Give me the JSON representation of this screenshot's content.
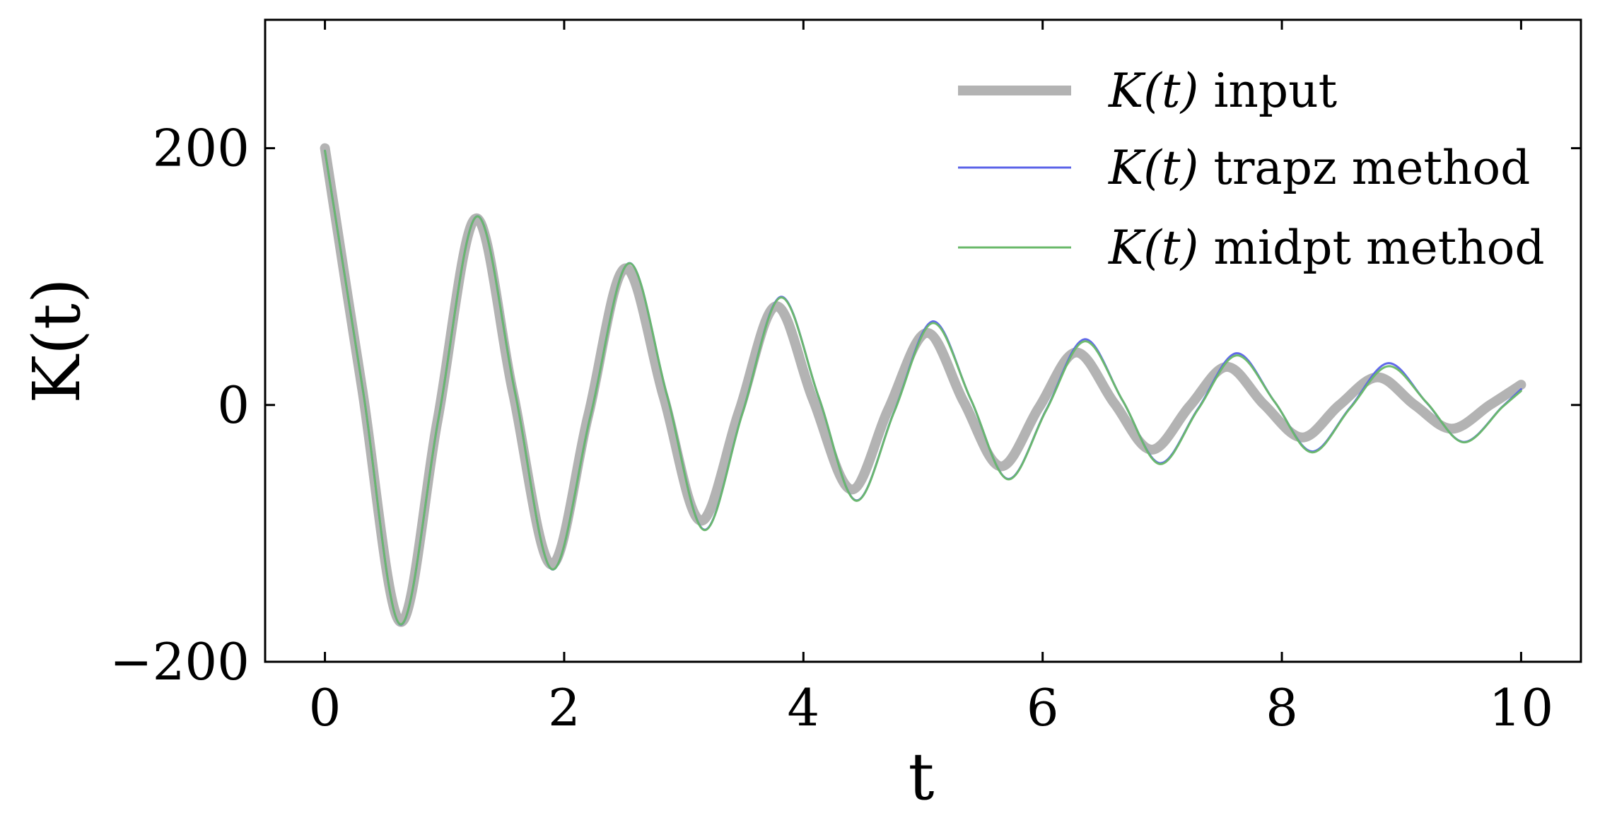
{
  "chart_data": {
    "type": "line",
    "title": "",
    "xlabel": "t",
    "ylabel": "K(t)",
    "xlim": [
      -0.5,
      10.5
    ],
    "ylim": [
      -200,
      300
    ],
    "xticks": [
      0,
      2,
      4,
      6,
      8,
      10
    ],
    "xtick_labels": [
      "0",
      "2",
      "4",
      "6",
      "8",
      "10"
    ],
    "yticks": [
      -200,
      0,
      200
    ],
    "ytick_labels": [
      "−200",
      "0",
      "200"
    ],
    "grid": false,
    "legend_position": "top-right",
    "series": [
      {
        "name": "K(t) input",
        "legend_math": "K(t)",
        "legend_text": "input",
        "color": "#b3b3b3",
        "style": "thick",
        "x": [
          0,
          0.31,
          0.63,
          0.94,
          1.26,
          1.57,
          1.89,
          2.2,
          2.51,
          2.83,
          3.14,
          3.46,
          3.77,
          4.08,
          4.4,
          4.71,
          5.03,
          5.34,
          5.65,
          5.97,
          6.28,
          6.6,
          6.91,
          7.23,
          7.54,
          7.85,
          8.17,
          8.48,
          8.8,
          9.11,
          9.42,
          9.74,
          10
        ],
        "y": [
          200,
          13.2,
          -168.9,
          -12.6,
          145.2,
          10.6,
          -124.2,
          -8.6,
          106.4,
          6.9,
          -90.1,
          -5.5,
          76.9,
          4.3,
          -65.8,
          -3.3,
          56.1,
          2.5,
          -47.8,
          -1.8,
          40.9,
          1.2,
          -34.8,
          -0.8,
          29.7,
          0.4,
          -25.3,
          -0.1,
          21.6,
          0,
          -18.5,
          0.1,
          15.8
        ]
      },
      {
        "name": "K(t) trapz method",
        "legend_math": "K(t)",
        "legend_text": "trapz method",
        "color": "#5b63e8",
        "style": "thin",
        "x": [
          0,
          0.32,
          0.63,
          0.95,
          1.27,
          1.59,
          1.9,
          2.22,
          2.54,
          2.86,
          3.17,
          3.49,
          3.81,
          4.13,
          4.44,
          4.76,
          5.08,
          5.4,
          5.71,
          6.03,
          6.35,
          6.67,
          6.98,
          7.3,
          7.62,
          7.94,
          8.25,
          8.57,
          8.89,
          9.21,
          9.52,
          9.84,
          10
        ],
        "y": [
          198,
          10.1,
          -171,
          -10.2,
          146.9,
          9.5,
          -128.1,
          -8.5,
          110.4,
          7.4,
          -97.1,
          -6.4,
          84.2,
          5.5,
          -74.3,
          -4.8,
          65.1,
          4.2,
          -57.6,
          -3.7,
          51.2,
          3.2,
          -45.3,
          -2.8,
          40.3,
          2.4,
          -36.2,
          -2.1,
          32.6,
          1.8,
          -28.8,
          -1.6,
          12.3
        ]
      },
      {
        "name": "K(t) midpt method",
        "legend_math": "K(t)",
        "legend_text": "midpt method",
        "color": "#6ab96a",
        "style": "thin",
        "x": [
          0,
          0.32,
          0.63,
          0.95,
          1.27,
          1.59,
          1.9,
          2.22,
          2.54,
          2.86,
          3.17,
          3.49,
          3.81,
          4.13,
          4.44,
          4.76,
          5.08,
          5.4,
          5.71,
          6.03,
          6.35,
          6.67,
          6.98,
          7.3,
          7.62,
          7.94,
          8.25,
          8.57,
          8.89,
          9.21,
          9.52,
          9.84,
          10
        ],
        "y": [
          198,
          10,
          -170.8,
          -10.1,
          146.8,
          9.4,
          -128,
          -8.6,
          110.3,
          7.4,
          -97.4,
          -6.6,
          83.7,
          5.6,
          -74.6,
          -5.1,
          63.8,
          4.3,
          -57.9,
          -4.1,
          49.6,
          3.3,
          -46,
          -3.3,
          38.6,
          2.4,
          -36.9,
          -2.6,
          30.2,
          1.9,
          -29.1,
          -1.9,
          10.9
        ]
      }
    ]
  }
}
